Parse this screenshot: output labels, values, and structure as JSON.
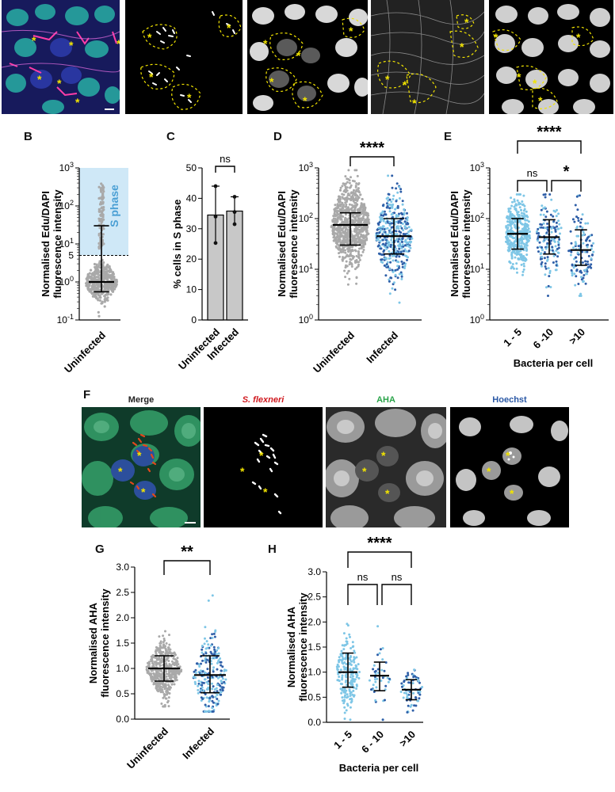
{
  "figure": {
    "panel_letters": {
      "B": "B",
      "C": "C",
      "D": "D",
      "E": "E",
      "F": "F",
      "G": "G",
      "H": "H"
    },
    "colors": {
      "uninfected_points": "#a9a9a9",
      "infected_light": "#7ec6e6",
      "infected_dark": "#2f5fa8",
      "s_phase_band": "#cfe8f7",
      "s_phase_text": "#4a9fd4",
      "merge_red": "#d0191f",
      "aha_green": "#2aa44a",
      "hoechst_blue": "#2b59a6",
      "asterisk": "#f2e400"
    },
    "panel_A": {
      "asterisk": "*"
    },
    "panel_F": {
      "channel_labels": {
        "merge": "Merge",
        "sflexneri": "S. flexneri",
        "aha": "AHA",
        "hoechst": "Hoechst"
      },
      "asterisk": "*"
    }
  },
  "chart_data": [
    {
      "id": "B",
      "type": "scatter",
      "ylabel": [
        "Normalised Edu/DAPI",
        "fluorescence intensity"
      ],
      "yscale": "log",
      "ylim": [
        0.1,
        1000
      ],
      "yticks": [
        "10^-1",
        "10^0",
        "10^1",
        "10^2",
        "10^3"
      ],
      "categories": [
        "Uninfected"
      ],
      "threshold": 5,
      "threshold_label": "5",
      "annotation": "S phase",
      "series": [
        {
          "median": 1.0,
          "q1": 0.55,
          "q3": 30
        }
      ]
    },
    {
      "id": "C",
      "type": "bar",
      "ylabel": "% cells in S phase",
      "ylim": [
        0,
        50
      ],
      "yticks": [
        0,
        10,
        20,
        30,
        40,
        50
      ],
      "categories": [
        "Uninfected",
        "Infected"
      ],
      "values": [
        34.5,
        35.8
      ],
      "error_high": [
        44,
        40.5
      ],
      "error_low": [
        25.3,
        31.5
      ],
      "replicates": [
        [
          25.3,
          34,
          44
        ],
        [
          31.5,
          35.5,
          40.5
        ]
      ],
      "significance": [
        {
          "pair": [
            0,
            1
          ],
          "label": "ns"
        }
      ]
    },
    {
      "id": "D",
      "type": "scatter",
      "ylabel": [
        "Normalised Edu/DAPI",
        "fluorescence intensity"
      ],
      "yscale": "log",
      "ylim": [
        1,
        1000
      ],
      "yticks": [
        "10^0",
        "10^1",
        "10^2",
        "10^3"
      ],
      "categories": [
        "Uninfected",
        "Infected"
      ],
      "series": [
        {
          "name": "Uninfected",
          "mean": 75,
          "sd_low": 30,
          "sd_high": 130
        },
        {
          "name": "Infected",
          "mean": 45,
          "sd_low": 20,
          "sd_high": 100
        }
      ],
      "significance": [
        {
          "pair": [
            0,
            1
          ],
          "label": "****"
        }
      ]
    },
    {
      "id": "E",
      "type": "scatter",
      "ylabel": [
        "Normalised Edu/DAPI",
        "fluorescence intensity"
      ],
      "xlabel": "Bacteria per cell",
      "yscale": "log",
      "ylim": [
        1,
        1000
      ],
      "yticks": [
        "10^0",
        "10^1",
        "10^2",
        "10^3"
      ],
      "categories": [
        "1 - 5",
        "6 -10",
        ">10"
      ],
      "series": [
        {
          "mean": 50,
          "sd_low": 25,
          "sd_high": 100
        },
        {
          "mean": 43,
          "sd_low": 20,
          "sd_high": 95
        },
        {
          "mean": 24,
          "sd_low": 12,
          "sd_high": 60
        }
      ],
      "significance": [
        {
          "pair": [
            0,
            2
          ],
          "label": "****"
        },
        {
          "pair": [
            0,
            1
          ],
          "label": "ns"
        },
        {
          "pair": [
            1,
            2
          ],
          "label": "*"
        }
      ]
    },
    {
      "id": "G",
      "type": "scatter",
      "ylabel": [
        "Normalised AHA",
        "fluorescence intensity"
      ],
      "ylim": [
        0,
        3
      ],
      "yticks": [
        "0.0",
        "0.5",
        "1.0",
        "1.5",
        "2.0",
        "2.5",
        "3.0"
      ],
      "categories": [
        "Uninfected",
        "Infected"
      ],
      "series": [
        {
          "name": "Uninfected",
          "mean": 1.0,
          "sd_low": 0.75,
          "sd_high": 1.25
        },
        {
          "name": "Infected",
          "mean": 0.87,
          "sd_low": 0.52,
          "sd_high": 1.25
        }
      ],
      "significance": [
        {
          "pair": [
            0,
            1
          ],
          "label": "**"
        }
      ]
    },
    {
      "id": "H",
      "type": "scatter",
      "ylabel": [
        "Normalised AHA",
        "fluorescence intensity"
      ],
      "xlabel": "Bacteria per cell",
      "ylim": [
        0,
        3
      ],
      "yticks": [
        "0.0",
        "0.5",
        "1.0",
        "1.5",
        "2.0",
        "2.5",
        "3.0"
      ],
      "categories": [
        "1 - 5",
        "6 - 10",
        ">10"
      ],
      "series": [
        {
          "mean": 1.0,
          "sd_low": 0.7,
          "sd_high": 1.38
        },
        {
          "mean": 0.93,
          "sd_low": 0.63,
          "sd_high": 1.2
        },
        {
          "mean": 0.65,
          "sd_low": 0.45,
          "sd_high": 0.85
        }
      ],
      "significance": [
        {
          "pair": [
            0,
            2
          ],
          "label": "****"
        },
        {
          "pair": [
            0,
            1
          ],
          "label": "ns"
        },
        {
          "pair": [
            1,
            2
          ],
          "label": "ns"
        }
      ]
    }
  ]
}
